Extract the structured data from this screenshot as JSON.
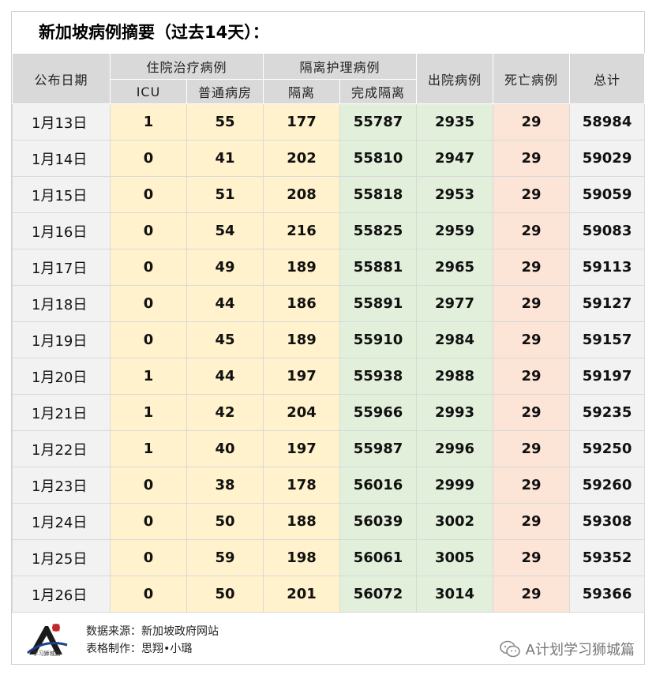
{
  "title": "新加坡病例摘要（过去14天）：",
  "headers": {
    "date": "公布日期",
    "hospital_group": "住院治疗病例",
    "icu": "ICU",
    "general_ward": "普通病房",
    "isolation_group": "隔离护理病例",
    "isolation": "隔离",
    "completed_isolation": "完成隔离",
    "discharged": "出院病例",
    "deaths": "死亡病例",
    "total": "总计"
  },
  "rows": [
    {
      "date": "1月13日",
      "icu": "1",
      "ward": "55",
      "iso": "177",
      "done": "55787",
      "out": "2935",
      "dead": "29",
      "total": "58984"
    },
    {
      "date": "1月14日",
      "icu": "0",
      "ward": "41",
      "iso": "202",
      "done": "55810",
      "out": "2947",
      "dead": "29",
      "total": "59029"
    },
    {
      "date": "1月15日",
      "icu": "0",
      "ward": "51",
      "iso": "208",
      "done": "55818",
      "out": "2953",
      "dead": "29",
      "total": "59059"
    },
    {
      "date": "1月16日",
      "icu": "0",
      "ward": "54",
      "iso": "216",
      "done": "55825",
      "out": "2959",
      "dead": "29",
      "total": "59083"
    },
    {
      "date": "1月17日",
      "icu": "0",
      "ward": "49",
      "iso": "189",
      "done": "55881",
      "out": "2965",
      "dead": "29",
      "total": "59113"
    },
    {
      "date": "1月18日",
      "icu": "0",
      "ward": "44",
      "iso": "186",
      "done": "55891",
      "out": "2977",
      "dead": "29",
      "total": "59127"
    },
    {
      "date": "1月19日",
      "icu": "0",
      "ward": "45",
      "iso": "189",
      "done": "55910",
      "out": "2984",
      "dead": "29",
      "total": "59157"
    },
    {
      "date": "1月20日",
      "icu": "1",
      "ward": "44",
      "iso": "197",
      "done": "55938",
      "out": "2988",
      "dead": "29",
      "total": "59197"
    },
    {
      "date": "1月21日",
      "icu": "1",
      "ward": "42",
      "iso": "204",
      "done": "55966",
      "out": "2993",
      "dead": "29",
      "total": "59235"
    },
    {
      "date": "1月22日",
      "icu": "1",
      "ward": "40",
      "iso": "197",
      "done": "55987",
      "out": "2996",
      "dead": "29",
      "total": "59250"
    },
    {
      "date": "1月23日",
      "icu": "0",
      "ward": "38",
      "iso": "178",
      "done": "56016",
      "out": "2999",
      "dead": "29",
      "total": "59260"
    },
    {
      "date": "1月24日",
      "icu": "0",
      "ward": "50",
      "iso": "188",
      "done": "56039",
      "out": "3002",
      "dead": "29",
      "total": "59308"
    },
    {
      "date": "1月25日",
      "icu": "0",
      "ward": "59",
      "iso": "198",
      "done": "56061",
      "out": "3005",
      "dead": "29",
      "total": "59352"
    },
    {
      "date": "1月26日",
      "icu": "0",
      "ward": "50",
      "iso": "201",
      "done": "56072",
      "out": "3014",
      "dead": "29",
      "total": "59366"
    }
  ],
  "footer": {
    "source": "数据来源：新加坡政府网站",
    "maker": "表格制作：思翔•小璐",
    "logo_caption": "学习狮城篇",
    "watermark": "A计划学习狮城篇",
    "logo_icon": "lion-city-logo-icon",
    "watermark_icon": "wechat-icon"
  },
  "colors": {
    "header_bg": "#d9d9d9",
    "date_bg": "#f2f2f2",
    "hospital_bg": "#fff2cc",
    "isolation_bg": "#e2efda",
    "deaths_bg": "#fce4d6",
    "total_bg": "#f2f2f2"
  }
}
